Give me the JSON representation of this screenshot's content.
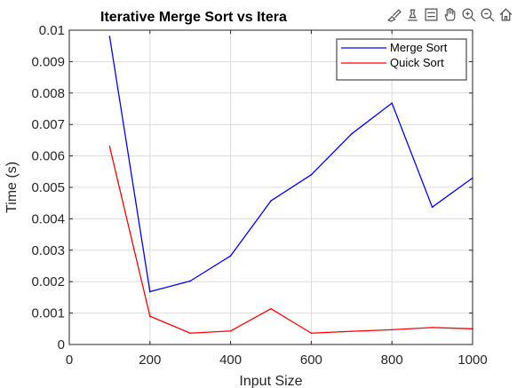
{
  "chart_data": {
    "type": "line",
    "title": "Iterative Merge Sort vs Itera",
    "xlabel": "Input Size",
    "ylabel": "Time (s)",
    "xlim": [
      0,
      1000
    ],
    "ylim": [
      0,
      0.01
    ],
    "xticks": [
      0,
      200,
      400,
      600,
      800,
      1000
    ],
    "xtick_labels": [
      "0",
      "200",
      "400",
      "600",
      "800",
      "1000"
    ],
    "yticks": [
      0,
      0.001,
      0.002,
      0.003,
      0.004,
      0.005,
      0.006,
      0.007,
      0.008,
      0.009,
      0.01
    ],
    "ytick_labels": [
      "0",
      "0.001",
      "0.002",
      "0.003",
      "0.004",
      "0.005",
      "0.006",
      "0.007",
      "0.008",
      "0.009",
      "0.01"
    ],
    "grid": true,
    "legend_position": "top-right",
    "x": [
      100,
      200,
      300,
      400,
      500,
      600,
      700,
      800,
      900,
      1000
    ],
    "series": [
      {
        "name": "Merge Sort",
        "color": "#0000ff",
        "values": [
          0.0098,
          0.00168,
          0.00202,
          0.00282,
          0.00457,
          0.0054,
          0.0067,
          0.00768,
          0.00437,
          0.0053
        ]
      },
      {
        "name": "Quick Sort",
        "color": "#ff0000",
        "values": [
          0.0063,
          0.0009,
          0.00036,
          0.00043,
          0.00114,
          0.00036,
          0.00042,
          0.00047,
          0.00054,
          0.0005
        ]
      }
    ]
  },
  "toolbar": {
    "icons": [
      "brush-icon",
      "data-tips-icon",
      "legend-icon",
      "pan-icon",
      "zoom-in-icon",
      "zoom-out-icon",
      "home-icon"
    ]
  }
}
